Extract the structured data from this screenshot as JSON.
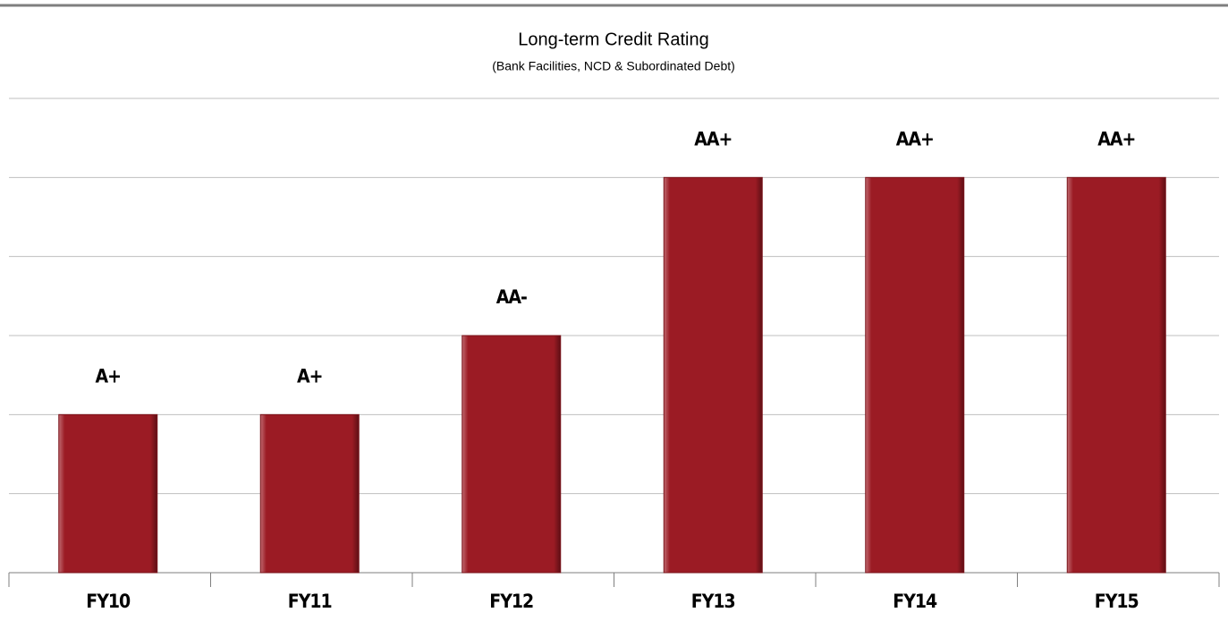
{
  "chart_data": {
    "type": "bar",
    "title": "Long-term Credit Rating",
    "subtitle": "(Bank Facilities, NCD & Subordinated Debt)",
    "categories": [
      "FY10",
      "FY11",
      "FY12",
      "FY13",
      "FY14",
      "FY15"
    ],
    "values": [
      2,
      2,
      3,
      5,
      5,
      5
    ],
    "value_labels": [
      "A+",
      "A+",
      "AA-",
      "AA+",
      "AA+",
      "AA+"
    ],
    "color": "#9b1b24",
    "ylim": [
      0,
      6
    ],
    "yticks": [
      0,
      1,
      2,
      3,
      4,
      5,
      6
    ],
    "grid": true
  }
}
